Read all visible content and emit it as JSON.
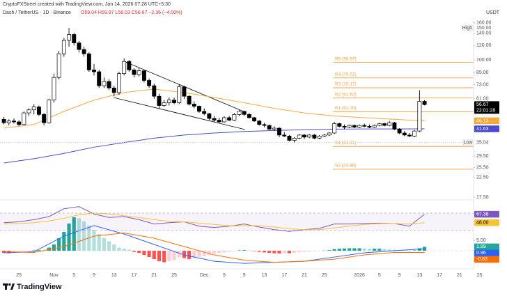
{
  "chart_data": [
    {
      "type": "candlestick",
      "title": "CryptoFXStreet created with TradingView.com, Jan 14, 2026 07:28 UTC+5:30",
      "subtitle": "Dash / TetherUS · 1D · Binance",
      "ohlc_text": "O59.04 H59.97 L56.03 C56.67 −2.36 (−4.00%)",
      "unit": "USDT",
      "countdown": "22:01:28",
      "watermark": "TradingView",
      "log": true,
      "grid": false,
      "ylim": [
        17.2,
        164
      ],
      "yticks": [
        {
          "value": 160,
          "label": "160.00"
        },
        {
          "value": 140,
          "label": "140.00"
        },
        {
          "value": 120,
          "label": "120.00"
        },
        {
          "value": 100,
          "label": "100.00"
        },
        {
          "value": 85,
          "label": "85.00"
        },
        {
          "value": 73,
          "label": "73.00"
        },
        {
          "value": 61,
          "label": "61.00"
        },
        {
          "value": 29.5,
          "label": "29.50"
        },
        {
          "value": 25.5,
          "label": "25.50"
        },
        {
          "value": 22.5,
          "label": "22.50"
        },
        {
          "value": 17.5,
          "label": "17.50"
        }
      ],
      "high_tag": {
        "text": "High",
        "value": 150,
        "label": "150.00"
      },
      "low_tag": {
        "text": "Low",
        "value": 35.04
      },
      "candle_colors": {
        "up": "#ffffff",
        "down": "#000000",
        "wick": "#000000"
      },
      "categories": [
        null,
        null,
        null,
        "25",
        null,
        null,
        null,
        null,
        null,
        null,
        "Nov",
        null,
        null,
        null,
        "5",
        null,
        null,
        null,
        "9",
        null,
        null,
        null,
        "13",
        null,
        null,
        null,
        "17",
        null,
        null,
        null,
        "21",
        null,
        null,
        null,
        "25",
        null,
        null,
        null,
        null,
        null,
        "Dec",
        null,
        null,
        null,
        "5",
        null,
        null,
        null,
        "9",
        null,
        null,
        null,
        "13",
        null,
        null,
        null,
        "17",
        null,
        null,
        null,
        "21",
        null,
        null,
        null,
        "25",
        null,
        null,
        null,
        null,
        null,
        null,
        "2026",
        null,
        null,
        null,
        "5",
        null,
        null,
        null,
        "9",
        null,
        null,
        null,
        "13",
        null,
        null,
        null,
        "17",
        null,
        null,
        null,
        "21",
        null,
        null,
        null,
        "25"
      ],
      "open": [
        47,
        45,
        46,
        45.5,
        44,
        51,
        53,
        55,
        50,
        45,
        60,
        80,
        108,
        128,
        138,
        124,
        114,
        108,
        88,
        86,
        72,
        76,
        70,
        66,
        84,
        98,
        88,
        83,
        87,
        77,
        72,
        63,
        56,
        58,
        60,
        58,
        71,
        63,
        57,
        55.5,
        52,
        50.5,
        47.5,
        46.5,
        45.5,
        48,
        46.5,
        50,
        52,
        50,
        48,
        46,
        44,
        43.5,
        41.5,
        42,
        38.5,
        38,
        36,
        37,
        38.5,
        37.5,
        38.5,
        37,
        38,
        38.5,
        39.5,
        44.5,
        43,
        42.5,
        43.5,
        42.5,
        43.5,
        43,
        42.5,
        43.5,
        44.5,
        43.5,
        45,
        41.5,
        39.5,
        38.5,
        38,
        40.5,
        59.04,
        null,
        null,
        null,
        null,
        null,
        null,
        null,
        null,
        null,
        null,
        null
      ],
      "high": [
        48.5,
        47,
        47.5,
        46.5,
        52,
        54,
        57,
        56,
        51,
        61,
        84,
        112,
        132,
        150,
        141,
        127,
        118,
        110,
        95,
        88,
        80,
        78,
        72,
        86,
        102,
        100,
        90,
        90,
        88,
        79,
        74,
        65,
        60,
        62,
        62,
        73,
        72,
        64,
        59,
        56,
        54,
        51,
        49,
        48,
        49,
        49,
        51,
        53,
        52.5,
        51,
        48.5,
        46.5,
        45,
        44,
        43,
        42.5,
        40,
        38.5,
        37.5,
        39,
        39,
        39,
        39,
        38.5,
        39,
        40,
        45.5,
        45,
        44,
        44,
        44,
        44,
        44.5,
        44,
        44,
        45,
        45,
        46,
        45.5,
        42,
        40.5,
        39.5,
        41,
        68,
        59.97,
        null,
        null,
        null,
        null,
        null,
        null,
        null,
        null,
        null,
        null,
        null
      ],
      "low": [
        44,
        43.5,
        44.5,
        43,
        43.5,
        49,
        50,
        49,
        43.5,
        44.5,
        58,
        78,
        104,
        118,
        120,
        110,
        104,
        86,
        82,
        70,
        70,
        68,
        63,
        64,
        82,
        86,
        80,
        81,
        75,
        70,
        61,
        54,
        55,
        56,
        57,
        57,
        61,
        56,
        54,
        51,
        49.5,
        46.5,
        45.5,
        45,
        45,
        46,
        46,
        49,
        49,
        47.5,
        45.5,
        43.5,
        42.5,
        41,
        40.5,
        37.5,
        37.5,
        35.5,
        35.04,
        36.5,
        36.5,
        37,
        36.5,
        36.5,
        37.5,
        38,
        39,
        42.5,
        41.5,
        42,
        42,
        42,
        42.5,
        42,
        42,
        43,
        43,
        43,
        41,
        39,
        38,
        37.5,
        37.5,
        40,
        56.03,
        null,
        null,
        null,
        null,
        null,
        null,
        null,
        null,
        null,
        null,
        null
      ],
      "close": [
        45,
        46,
        45.5,
        44,
        51,
        53,
        55,
        50,
        45,
        60,
        80,
        108,
        128,
        138,
        124,
        114,
        108,
        88,
        86,
        72,
        76,
        70,
        66,
        84,
        98,
        88,
        83,
        87,
        77,
        72,
        63,
        56,
        58,
        60,
        58,
        71,
        63,
        57,
        55.5,
        52,
        50.5,
        47.5,
        46.5,
        45.5,
        48,
        46.5,
        50,
        52,
        50,
        48,
        46,
        44,
        43.5,
        41.5,
        42,
        38.5,
        38,
        36,
        37,
        38.5,
        37.5,
        38.5,
        37,
        38,
        38.5,
        39.5,
        44.5,
        43,
        42.5,
        43.5,
        42.5,
        43.5,
        43,
        42.5,
        43.5,
        44.5,
        43.5,
        45,
        41.5,
        39.5,
        38.5,
        38,
        40.5,
        59.04,
        56.67,
        null,
        null,
        null,
        null,
        null,
        null,
        null,
        null,
        null,
        null,
        null
      ],
      "series": [
        {
          "color": "#f5a83b",
          "x": [
            0,
            6,
            12,
            18,
            24,
            30,
            36,
            42,
            48,
            54,
            60,
            66,
            72,
            78,
            84
          ],
          "values": [
            42,
            44,
            52,
            60,
            66,
            69,
            66,
            62,
            58,
            54,
            51,
            49,
            48,
            47,
            46.13
          ]
        },
        {
          "color": "#4a4ad0",
          "x": [
            0,
            6,
            12,
            18,
            24,
            30,
            36,
            42,
            48,
            54,
            60,
            66,
            72,
            78,
            84
          ],
          "values": [
            27,
            28.5,
            30.5,
            33,
            35,
            37,
            38.5,
            39.5,
            40.3,
            40.8,
            41.2,
            41.5,
            41.6,
            41.6,
            41.63
          ]
        }
      ],
      "level_color": "#f5a041",
      "levels": [
        {
          "label": "R5 (96.87)",
          "value": 96.87
        },
        {
          "label": "R4 (79.52)",
          "value": 79.52
        },
        {
          "label": "R3 (70.17)",
          "value": 70.17
        },
        {
          "label": "R2 (61.62)",
          "value": 61.62
        },
        {
          "label": "R1 (51.78)",
          "value": 51.78
        },
        {
          "label": "S1 (33.31)",
          "value": 33.31
        },
        {
          "label": "S2 (24.96)",
          "value": 24.96
        }
      ]
    },
    {
      "type": "line",
      "ylim": [
        18.8,
        95.6
      ],
      "yticks": [
        {
          "value": 70,
          "label": "70.00"
        }
      ],
      "band": [
        30,
        70
      ],
      "series": [
        {
          "color": "#7e57c2",
          "x": [
            0,
            3,
            6,
            9,
            12,
            15,
            18,
            21,
            24,
            27,
            30,
            33,
            36,
            39,
            42,
            45,
            48,
            51,
            54,
            57,
            60,
            63,
            66,
            69,
            72,
            75,
            78,
            81,
            84
          ],
          "values": [
            48,
            50,
            55,
            62,
            80,
            85,
            68,
            60,
            62,
            55,
            45,
            48,
            50,
            40,
            37,
            40,
            45,
            38,
            32,
            28,
            32,
            35,
            45,
            45,
            46,
            47,
            46,
            40,
            67.38
          ]
        },
        {
          "color": "#f7c531",
          "x": [
            0,
            3,
            6,
            9,
            12,
            15,
            18,
            21,
            24,
            27,
            30,
            33,
            36,
            39,
            42,
            45,
            48,
            51,
            54,
            57,
            60,
            63,
            66,
            69,
            72,
            75,
            78,
            81,
            84
          ],
          "values": [
            45,
            46,
            48,
            52,
            58,
            66,
            70,
            68,
            64,
            60,
            55,
            51,
            50,
            47,
            44,
            41,
            41,
            41,
            38,
            34,
            32,
            32,
            36,
            40,
            44,
            46,
            46,
            45,
            48
          ],
          "value_labels": [
            null,
            null,
            null,
            null,
            null,
            null,
            null,
            null,
            null,
            null,
            null,
            null,
            null,
            null,
            null,
            null,
            null,
            null,
            null,
            null,
            null,
            null,
            null,
            null,
            null,
            null,
            null,
            null,
            "48.00"
          ]
        }
      ]
    },
    {
      "type": "macd",
      "ylim": [
        -8.3,
        17.3
      ],
      "yticks": [
        {
          "value": 5,
          "label": "5.00"
        },
        {
          "value": -5,
          "label": "−5.00"
        }
      ],
      "histogram_colors": [
        "#26a69a",
        "#b2dfdb",
        "#ff5252",
        "#ffcdd2"
      ],
      "histogram": [
        -1,
        -1.2,
        -1,
        -0.8,
        -0.5,
        -0.3,
        0.2,
        0.3,
        0.1,
        1.5,
        3,
        6,
        9,
        13,
        16,
        15.5,
        14,
        12,
        10,
        8,
        6,
        4.5,
        3,
        1.5,
        1,
        0.5,
        -0.5,
        -1,
        -2,
        -3,
        -4,
        -5,
        -5.5,
        -5,
        -4.5,
        -3,
        -3.5,
        -4,
        -3.5,
        -3,
        -2.5,
        -2,
        -1.5,
        -1,
        -0.8,
        -0.5,
        -0.2,
        0.2,
        0.3,
        0.1,
        -0.2,
        -0.5,
        -0.8,
        -1,
        -1.2,
        -1.3,
        -1.2,
        -1.2,
        -1,
        -0.7,
        -0.5,
        -0.3,
        -0.2,
        0,
        0.1,
        0.3,
        0.8,
        1,
        1.1,
        1.2,
        1.2,
        1.2,
        1.1,
        1,
        1,
        1,
        0.9,
        0.8,
        0.5,
        0.3,
        0.1,
        -0.1,
        0.2,
        1.2,
        1.89,
        null,
        null,
        null,
        null,
        null,
        null,
        null,
        null,
        null,
        null,
        null
      ],
      "series": [
        {
          "color": "#2962ff",
          "x": [
            0,
            6,
            12,
            18,
            24,
            30,
            36,
            42,
            48,
            54,
            60,
            66,
            72,
            78,
            84
          ],
          "values": [
            -1,
            -0.5,
            7,
            12,
            8,
            3,
            -2,
            -5,
            -6,
            -5.5,
            -5,
            -3,
            -1,
            0,
            0.96
          ]
        },
        {
          "color": "#ff6d00",
          "x": [
            0,
            6,
            12,
            18,
            24,
            30,
            36,
            42,
            48,
            54,
            60,
            66,
            72,
            78,
            84
          ],
          "values": [
            -0.5,
            -0.8,
            2,
            7,
            8.5,
            6,
            2,
            -2,
            -4.5,
            -5.5,
            -5,
            -4,
            -2,
            -0.8,
            -0.83
          ]
        }
      ]
    }
  ]
}
